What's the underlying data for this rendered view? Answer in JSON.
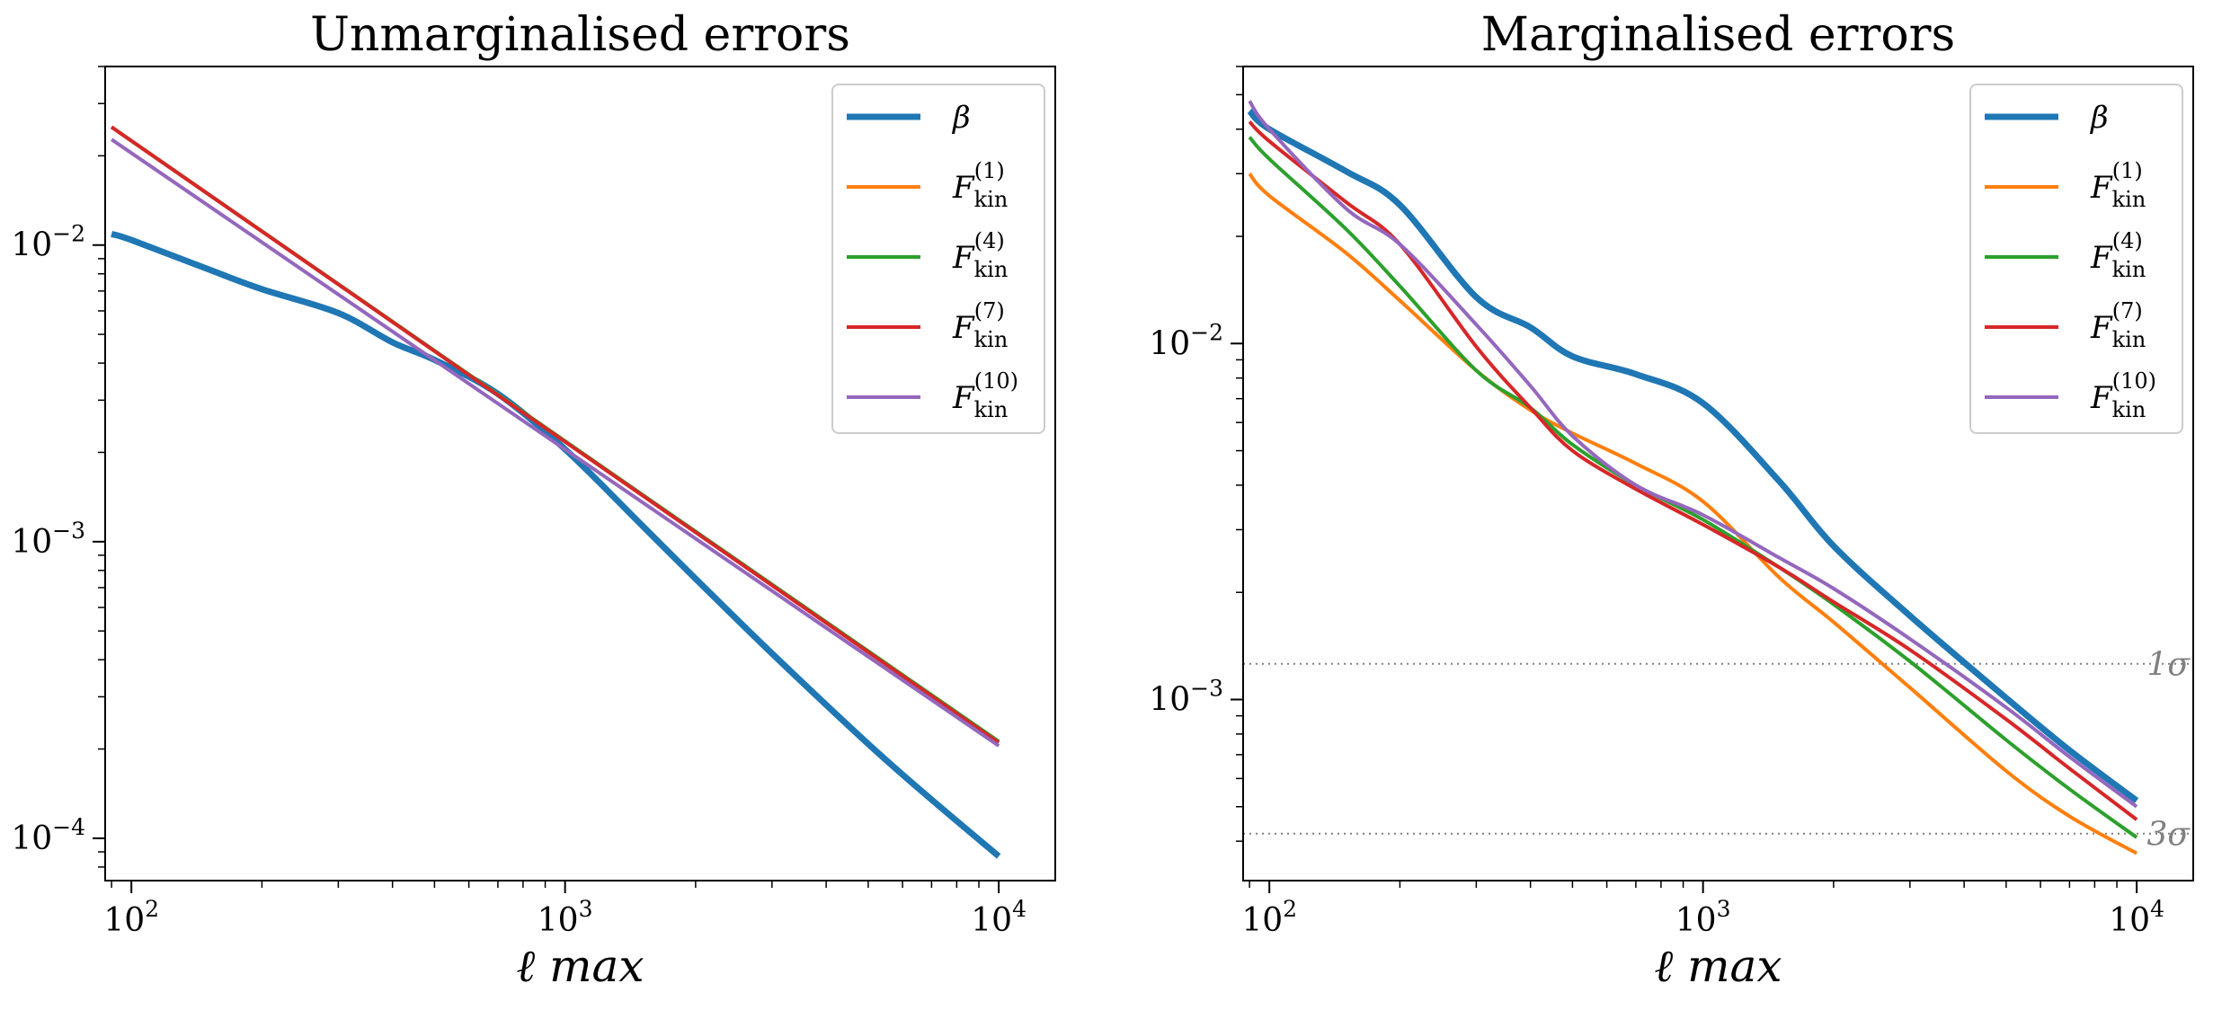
{
  "colors": {
    "beta": "#1f77b4",
    "F1": "#ff7f0e",
    "F4": "#2ca02c",
    "F7": "#d62728",
    "F10": "#9467bd",
    "reference_line": "#808080"
  },
  "chart_data": [
    {
      "type": "line",
      "title": "Unmarginalised errors",
      "xlabel": "ℓ max",
      "ylabel": "",
      "xscale": "log",
      "yscale": "log",
      "xlim": [
        87,
        13500
      ],
      "ylim": [
        7.2e-05,
        0.04
      ],
      "xticks": [
        {
          "value": 100,
          "base": "10",
          "exp": "2"
        },
        {
          "value": 1000,
          "base": "10",
          "exp": "3"
        },
        {
          "value": 10000,
          "base": "10",
          "exp": "4"
        }
      ],
      "yticks": [
        {
          "value": 0.01,
          "base": "10",
          "exp": "−2"
        },
        {
          "value": 0.001,
          "base": "10",
          "exp": "−3"
        },
        {
          "value": 0.0001,
          "base": "10",
          "exp": "−4"
        }
      ],
      "legend": "top-right",
      "series": [
        {
          "name": "β",
          "key": "beta",
          "width": 7,
          "x": [
            90,
            100,
            150,
            200,
            300,
            400,
            500,
            700,
            1000,
            1500,
            2000,
            3000,
            5000,
            7000,
            10000
          ],
          "y": [
            0.0109,
            0.0104,
            0.0083,
            0.0071,
            0.0059,
            0.0047,
            0.0041,
            0.00315,
            0.00205,
            0.00114,
            0.00075,
            0.00042,
            0.000208,
            0.000135,
            8.7e-05
          ]
        },
        {
          "name": "F",
          "sub": "kin",
          "sup": "(1)",
          "key": "F1",
          "width": 4,
          "x": [
            90,
            10000
          ],
          "y": [
            0.025,
            0.000212
          ]
        },
        {
          "name": "F",
          "sub": "kin",
          "sup": "(4)",
          "key": "F4",
          "width": 4,
          "x": [
            90,
            10000
          ],
          "y": [
            0.025,
            0.000212
          ]
        },
        {
          "name": "F",
          "sub": "kin",
          "sup": "(7)",
          "key": "F7",
          "width": 4,
          "x": [
            90,
            10000
          ],
          "y": [
            0.025,
            0.00021
          ]
        },
        {
          "name": "F",
          "sub": "kin",
          "sup": "(10)",
          "key": "F10",
          "width": 4,
          "x": [
            90,
            10000
          ],
          "y": [
            0.0227,
            0.000205
          ]
        }
      ]
    },
    {
      "type": "line",
      "title": "Marginalised errors",
      "xlabel": "ℓ max",
      "ylabel": "",
      "xscale": "log",
      "yscale": "log",
      "xlim": [
        87,
        13500
      ],
      "ylim": [
        0.00031,
        0.06
      ],
      "xticks": [
        {
          "value": 100,
          "base": "10",
          "exp": "2"
        },
        {
          "value": 1000,
          "base": "10",
          "exp": "3"
        },
        {
          "value": 10000,
          "base": "10",
          "exp": "4"
        }
      ],
      "yticks": [
        {
          "value": 0.01,
          "base": "10",
          "exp": "−2"
        },
        {
          "value": 0.001,
          "base": "10",
          "exp": "−3"
        }
      ],
      "legend": "top-right",
      "reference_lines": [
        {
          "y": 0.00126,
          "label": "1σ"
        },
        {
          "y": 0.00042,
          "label": "3σ"
        }
      ],
      "series": [
        {
          "name": "β",
          "key": "beta",
          "width": 7,
          "x": [
            90,
            100,
            150,
            200,
            300,
            400,
            500,
            700,
            1000,
            1500,
            2000,
            3000,
            5000,
            7000,
            10000
          ],
          "y": [
            0.045,
            0.04,
            0.0305,
            0.0245,
            0.0135,
            0.0111,
            0.0092,
            0.0082,
            0.0068,
            0.0041,
            0.0027,
            0.00172,
            0.00101,
            0.00072,
            0.00052
          ]
        },
        {
          "name": "F",
          "sub": "kin",
          "sup": "(1)",
          "key": "F1",
          "width": 4,
          "x": [
            90,
            100,
            150,
            200,
            300,
            400,
            500,
            700,
            1000,
            1500,
            2000,
            3000,
            5000,
            7000,
            10000
          ],
          "y": [
            0.03,
            0.026,
            0.018,
            0.0132,
            0.0084,
            0.0065,
            0.0056,
            0.0046,
            0.0036,
            0.0022,
            0.00165,
            0.00108,
            0.00063,
            0.00047,
            0.00037
          ]
        },
        {
          "name": "F",
          "sub": "kin",
          "sup": "(4)",
          "key": "F4",
          "width": 4,
          "x": [
            90,
            100,
            150,
            200,
            300,
            400,
            500,
            700,
            1000,
            1500,
            2000,
            3000,
            5000,
            7000,
            10000
          ],
          "y": [
            0.038,
            0.033,
            0.021,
            0.0145,
            0.0084,
            0.0066,
            0.0052,
            0.004,
            0.0032,
            0.00235,
            0.00185,
            0.00128,
            0.00077,
            0.00056,
            0.00041
          ]
        },
        {
          "name": "F",
          "sub": "kin",
          "sup": "(7)",
          "key": "F7",
          "width": 4,
          "x": [
            90,
            100,
            150,
            200,
            300,
            400,
            500,
            700,
            1000,
            1500,
            2000,
            3000,
            5000,
            7000,
            10000
          ],
          "y": [
            0.042,
            0.037,
            0.025,
            0.019,
            0.0098,
            0.0066,
            0.005,
            0.0039,
            0.0031,
            0.00235,
            0.00188,
            0.00138,
            0.00088,
            0.00064,
            0.00046
          ]
        },
        {
          "name": "F",
          "sub": "kin",
          "sup": "(10)",
          "key": "F10",
          "width": 4,
          "x": [
            90,
            100,
            150,
            200,
            300,
            400,
            500,
            700,
            1000,
            1500,
            2000,
            3000,
            5000,
            7000,
            10000
          ],
          "y": [
            0.048,
            0.04,
            0.024,
            0.019,
            0.0113,
            0.0076,
            0.0055,
            0.004,
            0.0033,
            0.0025,
            0.00205,
            0.00148,
            0.00095,
            0.00069,
            0.0005
          ]
        }
      ]
    }
  ]
}
